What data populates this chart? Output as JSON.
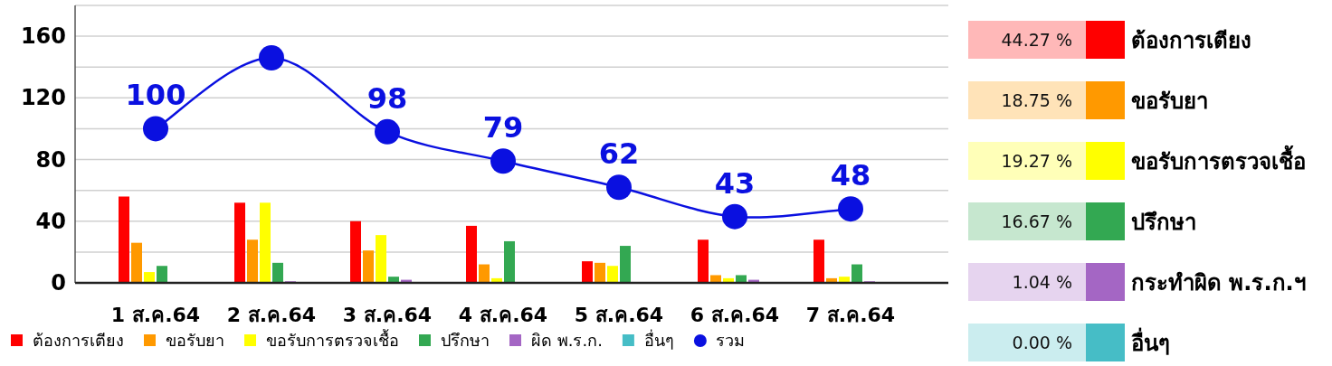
{
  "chart_data": [
    {
      "type": "bar",
      "categories": [
        "1 ส.ค.64",
        "2 ส.ค.64",
        "3 ส.ค.64",
        "4 ส.ค.64",
        "5 ส.ค.64",
        "6 ส.ค.64",
        "7 ส.ค.64"
      ],
      "series": [
        {
          "name": "ต้องการเตียง",
          "color": "#ff0000",
          "values": [
            56,
            52,
            40,
            37,
            14,
            28,
            28
          ]
        },
        {
          "name": "ขอรับยา",
          "color": "#ff9900",
          "values": [
            26,
            28,
            21,
            12,
            13,
            5,
            3
          ]
        },
        {
          "name": "ขอรับการตรวจเชื้อ",
          "color": "#ffff00",
          "values": [
            7,
            52,
            31,
            3,
            11,
            3,
            4
          ]
        },
        {
          "name": "ปรึกษา",
          "color": "#33a852",
          "values": [
            11,
            13,
            4,
            27,
            24,
            5,
            12
          ]
        },
        {
          "name": "ผิด พ.ร.ก.",
          "color": "#a466c4",
          "values": [
            0,
            1,
            2,
            0,
            0,
            2,
            1
          ]
        },
        {
          "name": "อื่นๆ",
          "color": "#46bdc6",
          "values": [
            0,
            0,
            0,
            0,
            0,
            0,
            0
          ]
        },
        {
          "name": "รวม",
          "type": "line",
          "marker": "circle",
          "color": "#0a10e0",
          "values": [
            100,
            146,
            98,
            79,
            62,
            43,
            48
          ],
          "value_labels": [
            "100",
            null,
            "98",
            "79",
            "62",
            "43",
            "48"
          ]
        }
      ],
      "ylim": [
        0,
        180
      ],
      "yticks": [
        0,
        {
          "value": 20,
          "label": null
        },
        40,
        {
          "value": 60,
          "label": null
        },
        80,
        {
          "value": 100,
          "label": null
        },
        120,
        {
          "value": 140,
          "label": null
        },
        160,
        {
          "value": 180,
          "label": null
        }
      ],
      "grid": "y",
      "legend": "bottom"
    },
    {
      "type": "other",
      "categories": [
        "ต้องการเตียง",
        "ขอรับยา",
        "ขอรับการตรวจเชื้อ",
        "ปรึกษา",
        "กระทำผิด พ.ร.ก.ฯ",
        "อื่นๆ"
      ],
      "values": [
        44.27,
        18.75,
        19.27,
        16.67,
        1.04,
        0.0
      ],
      "value_labels": [
        "44.27 %",
        "18.75 %",
        "19.27 %",
        "16.67 %",
        "1.04 %",
        "0.00 %"
      ],
      "colors": [
        "#ff0000",
        "#ff9900",
        "#ffff00",
        "#33a852",
        "#a466c4",
        "#46bdc6"
      ]
    }
  ]
}
